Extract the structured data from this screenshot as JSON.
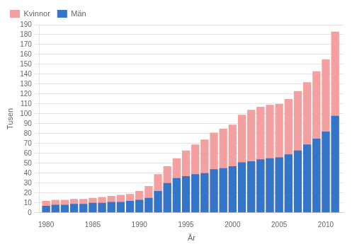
{
  "chart_data": {
    "type": "bar",
    "x": [
      1980,
      1981,
      1982,
      1983,
      1984,
      1985,
      1986,
      1987,
      1988,
      1989,
      1990,
      1991,
      1992,
      1993,
      1994,
      1995,
      1996,
      1997,
      1998,
      1999,
      2000,
      2001,
      2002,
      2003,
      2004,
      2005,
      2006,
      2007,
      2008,
      2009,
      2010,
      2011
    ],
    "series": [
      {
        "name": "Kvinnor",
        "color": "#f4a0a0",
        "values": [
          12,
          13,
          13,
          14,
          14,
          15,
          16,
          17,
          18,
          19,
          22,
          27,
          39,
          47,
          55,
          63,
          69,
          74,
          81,
          85,
          89,
          99,
          104,
          107,
          109,
          110,
          115,
          123,
          132,
          143,
          155,
          183
        ]
      },
      {
        "name": "Män",
        "color": "#3375c8",
        "values": [
          7,
          8,
          8,
          9,
          9,
          10,
          10,
          11,
          11,
          12,
          13,
          15,
          22,
          30,
          35,
          37,
          39,
          40,
          44,
          45,
          47,
          51,
          52,
          54,
          55,
          56,
          59,
          63,
          69,
          75,
          82,
          98
        ]
      }
    ],
    "xlabel": "År",
    "ylabel": "Tusen",
    "xlim": [
      1979.3,
      2011.9
    ],
    "xticks": [
      1980,
      1985,
      1990,
      1995,
      2000,
      2005,
      2010
    ],
    "ylim": [
      0,
      190
    ],
    "yticks": [
      0,
      10,
      20,
      30,
      40,
      50,
      60,
      70,
      80,
      90,
      100,
      110,
      120,
      130,
      140,
      150,
      160,
      170,
      180,
      190
    ],
    "grid": true,
    "legend": "upper left"
  }
}
